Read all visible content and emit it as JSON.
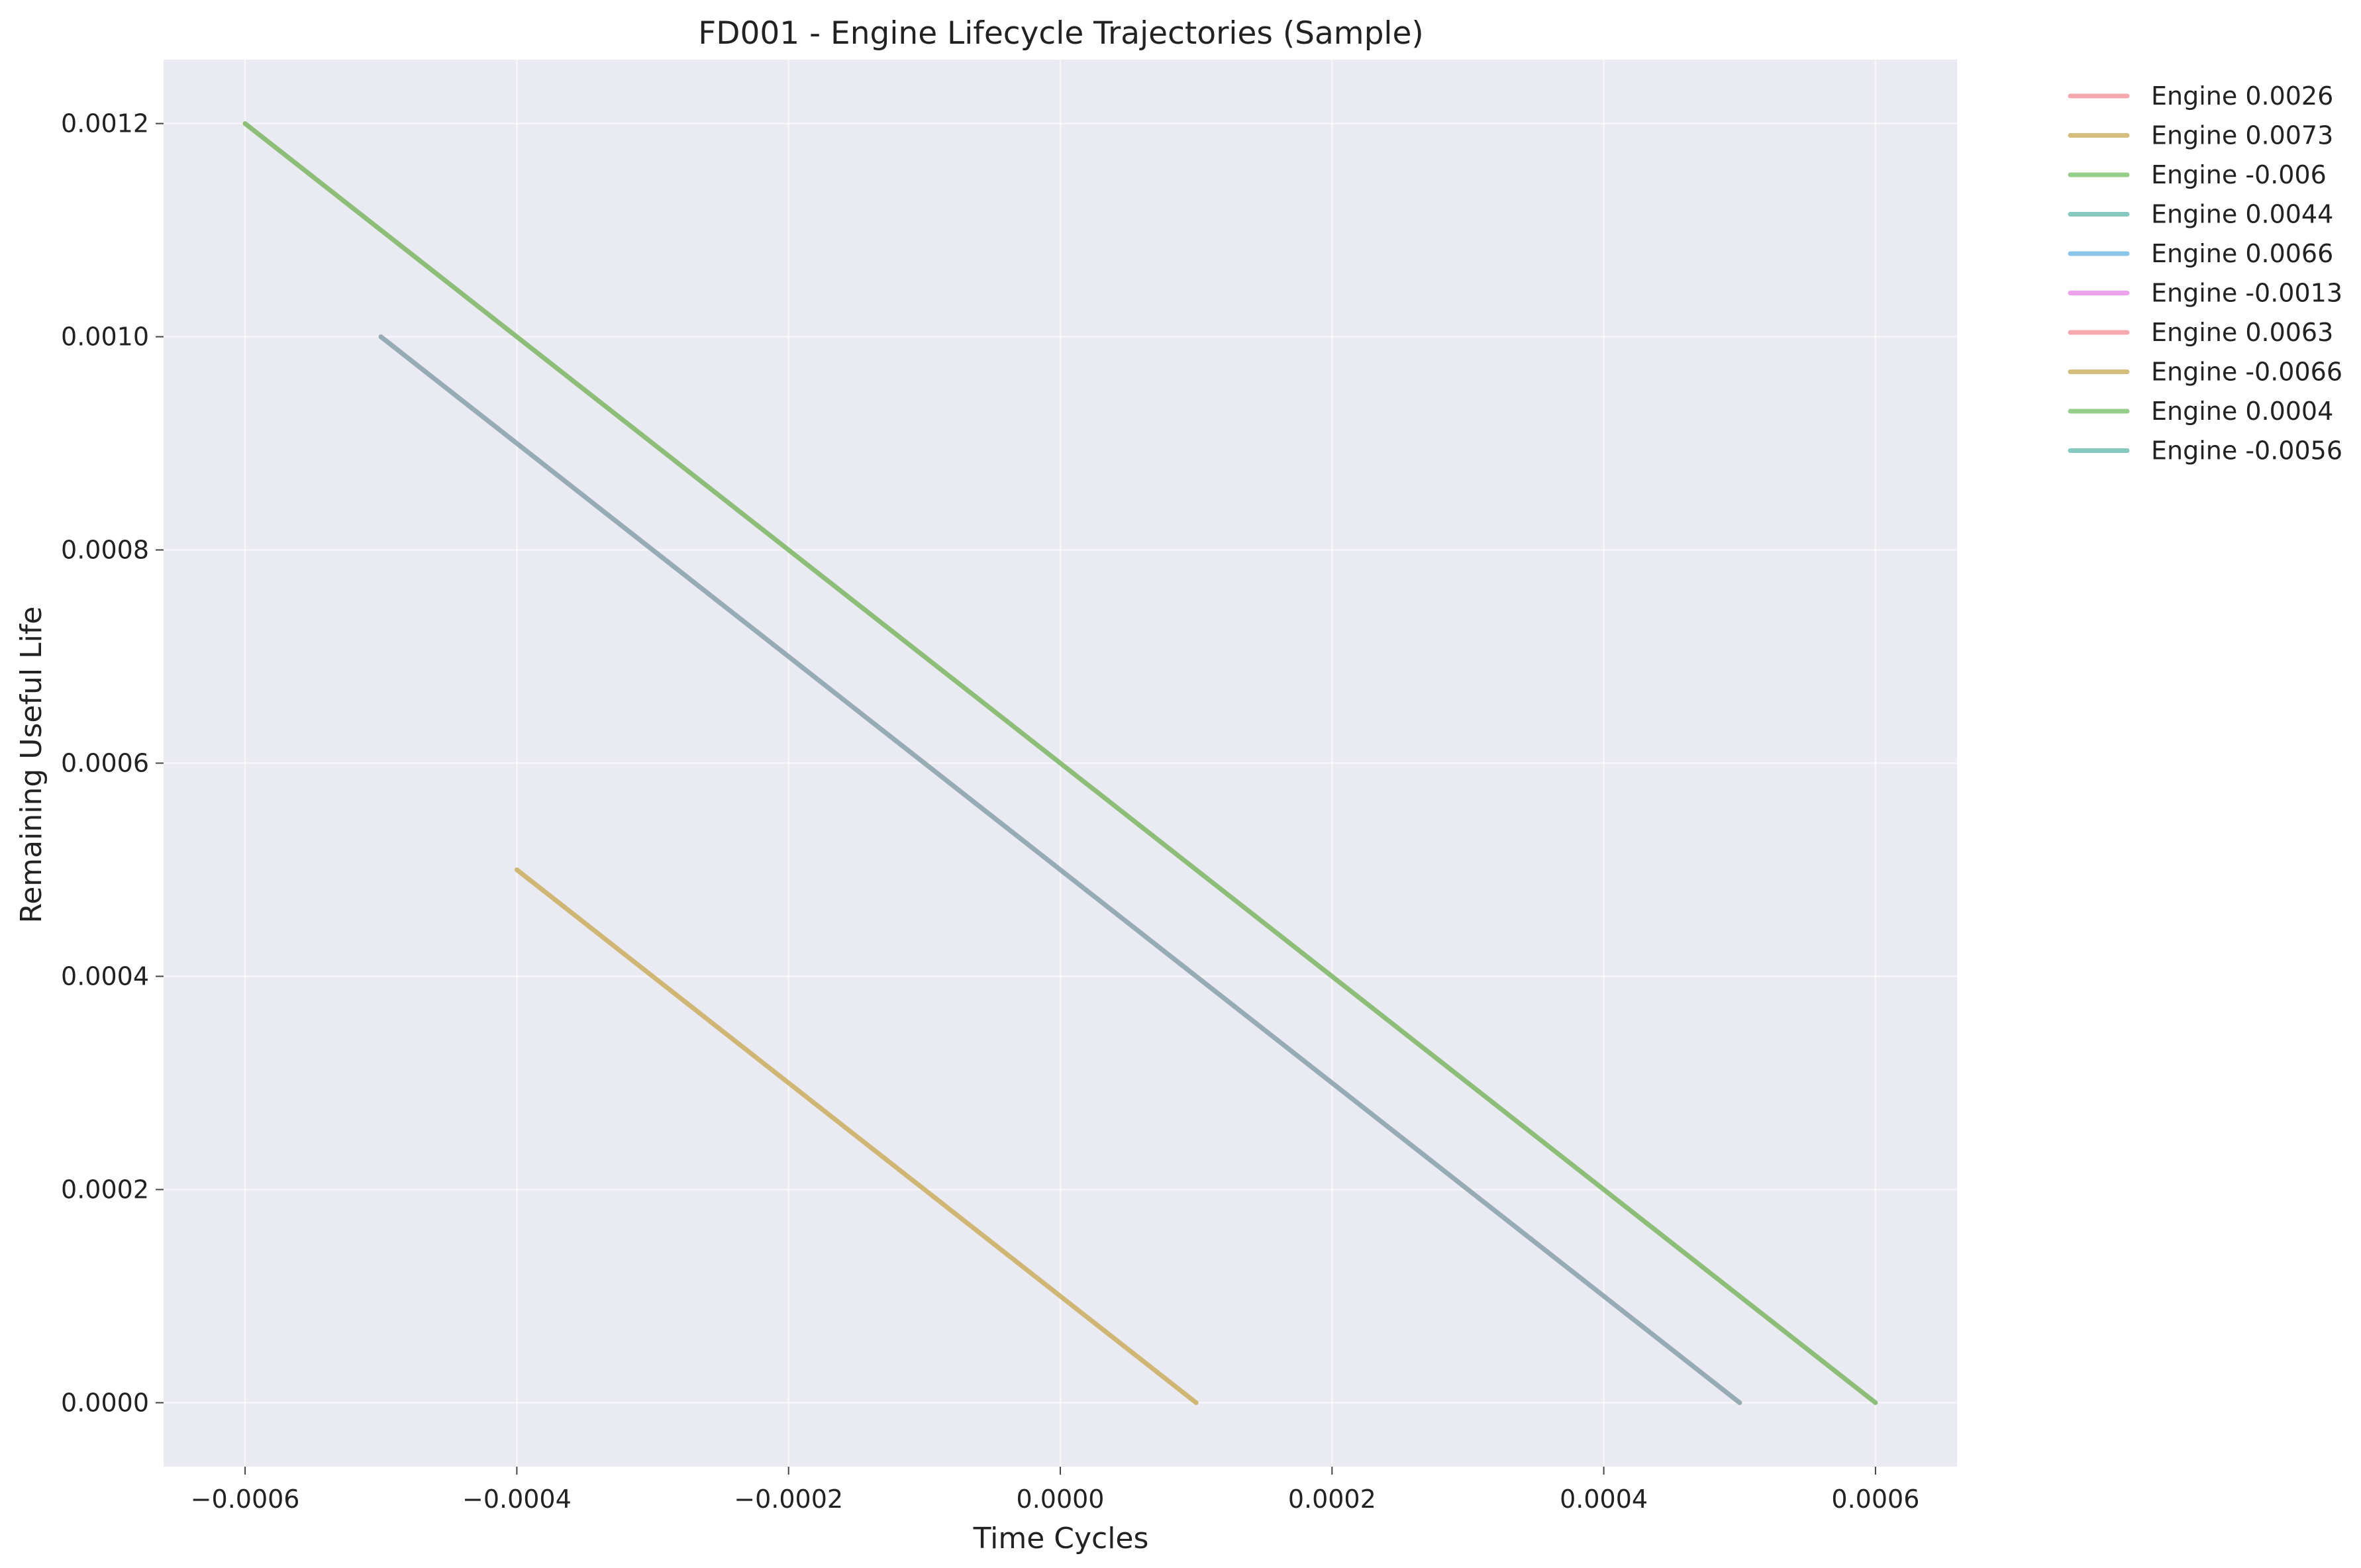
{
  "chart_data": {
    "type": "line",
    "title": "FD001 - Engine Lifecycle Trajectories (Sample)",
    "xlabel": "Time Cycles",
    "ylabel": "Remaining Useful Life",
    "xlim": [
      -0.00066,
      0.00066
    ],
    "ylim": [
      -6e-05,
      0.00126
    ],
    "xticks": [
      -0.0006,
      -0.0004,
      -0.0002,
      0.0,
      0.0002,
      0.0004,
      0.0006
    ],
    "xtick_labels": [
      "−0.0006",
      "−0.0004",
      "−0.0002",
      "0.0000",
      "0.0002",
      "0.0004",
      "0.0006"
    ],
    "yticks": [
      0.0,
      0.0002,
      0.0004,
      0.0006,
      0.0008,
      0.001,
      0.0012
    ],
    "ytick_labels": [
      "0.0000",
      "0.0002",
      "0.0004",
      "0.0006",
      "0.0008",
      "0.0010",
      "0.0012"
    ],
    "grid": true,
    "legend_position": "outside-top-right",
    "background": "#eaeaf2",
    "series": [
      {
        "name": "Engine 0.0026",
        "color": "#f2939b",
        "x": [
          -0.0006,
          0.0006
        ],
        "y": [
          0.0012,
          0.0
        ]
      },
      {
        "name": "Engine 0.0073",
        "color": "#c9ac5c",
        "x": [
          -0.0004,
          0.0001
        ],
        "y": [
          0.0005,
          0.0
        ]
      },
      {
        "name": "Engine -0.006",
        "color": "#7ac06b",
        "x": [
          -0.0006,
          0.0006
        ],
        "y": [
          0.0012,
          0.0
        ]
      },
      {
        "name": "Engine 0.0044",
        "color": "#66bbb0",
        "x": [
          -0.0005,
          0.0005
        ],
        "y": [
          0.001,
          0.0
        ]
      },
      {
        "name": "Engine 0.0066",
        "color": "#6cb5e3",
        "x": [
          -0.0005,
          0.0005
        ],
        "y": [
          0.001,
          0.0
        ]
      },
      {
        "name": "Engine -0.0013",
        "color": "#ec8aea",
        "x": [
          -0.0005,
          0.0005
        ],
        "y": [
          0.001,
          0.0
        ]
      },
      {
        "name": "Engine 0.0063",
        "color": "#f2939b",
        "x": [
          -0.0005,
          0.0005
        ],
        "y": [
          0.001,
          0.0
        ]
      },
      {
        "name": "Engine -0.0066",
        "color": "#c9ac5c",
        "x": [
          -0.0004,
          0.0001
        ],
        "y": [
          0.0005,
          0.0
        ]
      },
      {
        "name": "Engine 0.0004",
        "color": "#7ac06b",
        "x": [
          -0.0006,
          0.0006
        ],
        "y": [
          0.0012,
          0.0
        ]
      },
      {
        "name": "Engine -0.0056",
        "color": "#66bbb0",
        "x": [
          -0.0005,
          0.0005
        ],
        "y": [
          0.001,
          0.0
        ]
      }
    ]
  }
}
